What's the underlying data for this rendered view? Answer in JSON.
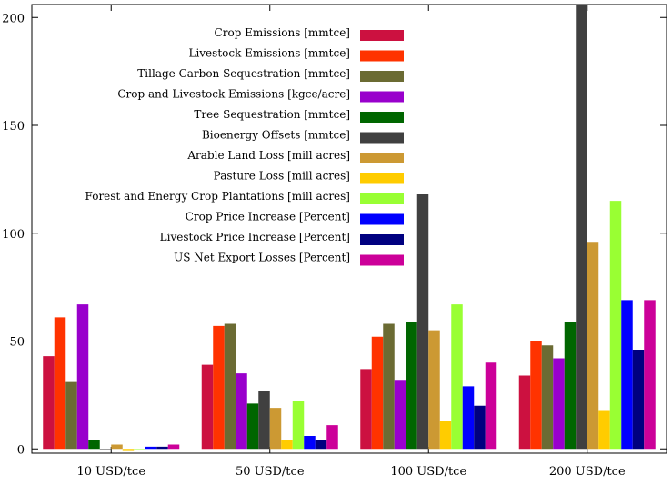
{
  "chart_data": {
    "type": "bar",
    "categories": [
      "10 USD/tce",
      "50 USD/tce",
      "100 USD/tce",
      "200 USD/tce"
    ],
    "ylim": [
      -2,
      206
    ],
    "yticks": [
      "0",
      "50",
      "100",
      "150",
      "200"
    ],
    "ytick_values": [
      0,
      50,
      100,
      150,
      200
    ],
    "grid": false,
    "legend_position": "top-center",
    "series": [
      {
        "name": "Crop Emissions [mmtce]",
        "color": "#cc1140",
        "values": [
          43,
          39,
          37,
          34
        ]
      },
      {
        "name": "Livestock Emissions [mmtce]",
        "color": "#ff3300",
        "values": [
          61,
          57,
          52,
          50
        ]
      },
      {
        "name": "Tillage Carbon Sequestration [mmtce]",
        "color": "#6b6b33",
        "values": [
          31,
          58,
          58,
          48
        ]
      },
      {
        "name": "Crop and Livestock Emissions [kgce/acre]",
        "color": "#9900cc",
        "values": [
          67,
          35,
          32,
          42
        ]
      },
      {
        "name": "Tree Sequestration [mmtce]",
        "color": "#006600",
        "values": [
          4,
          21,
          59,
          59
        ]
      },
      {
        "name": "Bioenergy Offsets [mmtce]",
        "color": "#404040",
        "values": [
          0,
          27,
          118,
          206
        ]
      },
      {
        "name": "Arable Land Loss [mill acres]",
        "color": "#cc9933",
        "values": [
          2,
          19,
          55,
          96
        ]
      },
      {
        "name": "Pasture Loss [mill acres]",
        "color": "#ffcc00",
        "values": [
          -1,
          4,
          13,
          18
        ]
      },
      {
        "name": "Forest and Energy Crop Plantations [mill acres]",
        "color": "#99ff33",
        "values": [
          0,
          22,
          67,
          115
        ]
      },
      {
        "name": "Crop Price Increase [Percent]",
        "color": "#0000ff",
        "values": [
          1,
          6,
          29,
          69
        ]
      },
      {
        "name": "Livestock Price Increase [Percent]",
        "color": "#000080",
        "values": [
          1,
          4,
          20,
          46
        ]
      },
      {
        "name": "US Net Export Losses [Percent]",
        "color": "#cc0099",
        "values": [
          2,
          11,
          40,
          69
        ]
      }
    ]
  }
}
